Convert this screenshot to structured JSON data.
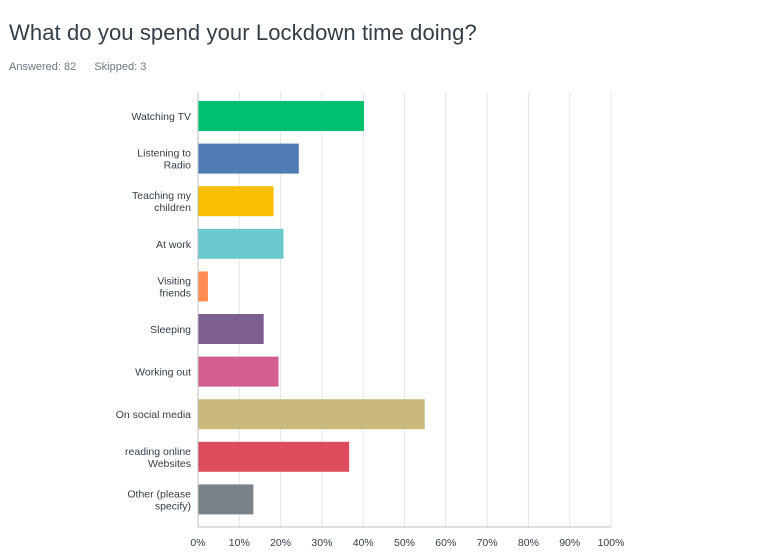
{
  "header": {
    "title": "What do you spend your Lockdown time doing?",
    "answered": "Answered: 82",
    "skipped": "Skipped: 3"
  },
  "chart_data": {
    "type": "bar",
    "orientation": "horizontal",
    "categories": [
      [
        "Watching TV"
      ],
      [
        "Listening to",
        "Radio"
      ],
      [
        "Teaching my",
        "children"
      ],
      [
        "At work"
      ],
      [
        "Visiting",
        "friends"
      ],
      [
        "Sleeping"
      ],
      [
        "Working out"
      ],
      [
        "On social media"
      ],
      [
        "reading online",
        "Websites"
      ],
      [
        "Other (please",
        "specify)"
      ]
    ],
    "values": [
      40.2,
      24.4,
      18.3,
      20.7,
      2.4,
      15.9,
      19.5,
      54.9,
      36.6,
      13.4
    ],
    "colors": [
      "#00bf6f",
      "#507cb6",
      "#f9be00",
      "#6bc8cd",
      "#ff8b4f",
      "#7d5e90",
      "#d25f90",
      "#c9b97c",
      "#dd4c5d",
      "#798189"
    ],
    "xticks": [
      "0%",
      "10%",
      "20%",
      "30%",
      "40%",
      "50%",
      "60%",
      "70%",
      "80%",
      "90%",
      "100%"
    ],
    "xlim": [
      0,
      100
    ],
    "grid": true
  }
}
